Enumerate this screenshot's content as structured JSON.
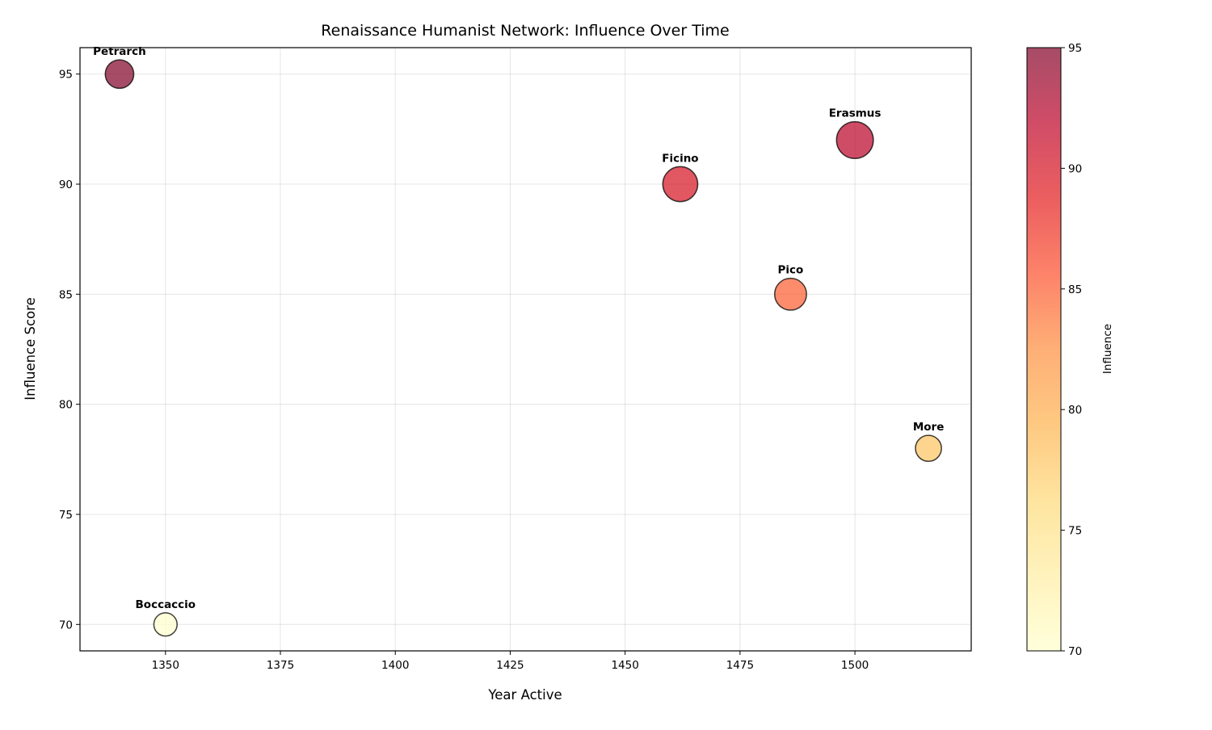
{
  "chart_data": {
    "type": "scatter",
    "title": "Renaissance Humanist Network: Influence Over Time",
    "xlabel": "Year Active",
    "ylabel": "Influence Score",
    "xlim": [
      1331.4,
      1525.3
    ],
    "ylim": [
      68.8,
      96.2
    ],
    "xticks": [
      1350,
      1375,
      1400,
      1425,
      1450,
      1475,
      1500
    ],
    "yticks": [
      70,
      75,
      80,
      85,
      90,
      95
    ],
    "grid": true,
    "points": [
      {
        "label": "Petrarch",
        "x": 1340,
        "y": 95,
        "size": 600
      },
      {
        "label": "Boccaccio",
        "x": 1350,
        "y": 70,
        "size": 400
      },
      {
        "label": "Ficino",
        "x": 1462,
        "y": 90,
        "size": 900
      },
      {
        "label": "Pico",
        "x": 1486,
        "y": 85,
        "size": 750
      },
      {
        "label": "Erasmus",
        "x": 1500,
        "y": 92,
        "size": 1000
      },
      {
        "label": "More",
        "x": 1516,
        "y": 78,
        "size": 500
      }
    ],
    "colormap": "YlOrRd",
    "alpha": 0.7,
    "edgecolor": "#000000",
    "colorbar": {
      "label": "Influence",
      "range": [
        70,
        95
      ],
      "ticks": [
        70,
        75,
        80,
        85,
        90,
        95
      ]
    }
  }
}
